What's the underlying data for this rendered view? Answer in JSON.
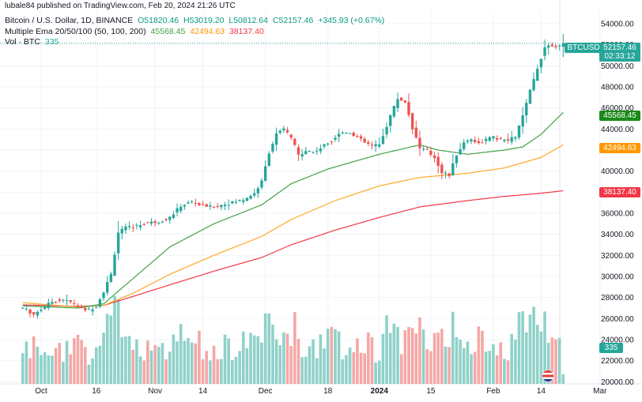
{
  "watermark": "lubale84 published on TradingView.com, Feb 20, 2024 21:26 UTC",
  "legend": {
    "symbol": "Bitcoin / U.S. Dollar, 1D, BINANCE",
    "open": "O51820.46",
    "high": "H53019.20",
    "low": "L50812.64",
    "close": "C52157.46",
    "change": "+345.93 (+0.67%)",
    "ema_title": "Multiple Ema 20/50/100 (50, 100, 200)",
    "ema1_value": "45568.45",
    "ema2_value": "42494.63",
    "ema3_value": "38137.40",
    "vol_title": "Vol · BTC",
    "vol_value": "335"
  },
  "price_labels": {
    "symbol": "BTCUSD",
    "price": "52157.46",
    "countdown": "02:33:12",
    "ema1": "45568.45",
    "ema2": "42494.63",
    "ema3": "38137.40",
    "volume": "335"
  },
  "colors": {
    "up": "#26a69a",
    "down": "#ef5350",
    "vol_up": "#8fd1c9",
    "vol_down": "#f4a8a6",
    "ema1": "#43a047",
    "ema2": "#ffa726",
    "ema3": "#f23645",
    "ema1_label": "#1b8a1b"
  },
  "chart_data": {
    "type": "candlestick",
    "ylim": [
      19800,
      55200
    ],
    "y_ticks": [
      "54000.00",
      "52000.00",
      "50000.00",
      "48000.00",
      "46000.00",
      "44000.00",
      "42000.00",
      "40000.00",
      "38000.00",
      "36000.00",
      "34000.00",
      "32000.00",
      "30000.00",
      "28000.00",
      "26000.00",
      "24000.00",
      "22000.00",
      "20000.00"
    ],
    "x_ticks": [
      {
        "label": "Oct",
        "day": 0
      },
      {
        "label": "16",
        "day": 15
      },
      {
        "label": "Nov",
        "day": 31
      },
      {
        "label": "14",
        "day": 44
      },
      {
        "label": "Dec",
        "day": 61
      },
      {
        "label": "18",
        "day": 78
      },
      {
        "label": "2024",
        "day": 92
      },
      {
        "label": "15",
        "day": 106
      },
      {
        "label": "Feb",
        "day": 123
      },
      {
        "label": "14",
        "day": 136
      },
      {
        "label": "Mar",
        "day": 152
      }
    ],
    "first_day": -5,
    "last_day": 142,
    "ema_keypoints": {
      "ema20": [
        [
          -5,
          27200
        ],
        [
          10,
          27000
        ],
        [
          17,
          27400
        ],
        [
          25,
          29800
        ],
        [
          35,
          32800
        ],
        [
          47,
          35000
        ],
        [
          60,
          36800
        ],
        [
          68,
          38800
        ],
        [
          78,
          40200
        ],
        [
          92,
          41600
        ],
        [
          103,
          42500
        ],
        [
          108,
          42000
        ],
        [
          116,
          41600
        ],
        [
          126,
          42000
        ],
        [
          131,
          42300
        ],
        [
          136,
          43500
        ],
        [
          142,
          45568.45
        ]
      ],
      "ema50": [
        [
          -5,
          27500
        ],
        [
          10,
          27100
        ],
        [
          17,
          27250
        ],
        [
          25,
          28400
        ],
        [
          35,
          30200
        ],
        [
          47,
          32000
        ],
        [
          60,
          33800
        ],
        [
          68,
          35400
        ],
        [
          80,
          37200
        ],
        [
          92,
          38600
        ],
        [
          103,
          39400
        ],
        [
          116,
          39800
        ],
        [
          126,
          40300
        ],
        [
          136,
          41300
        ],
        [
          142,
          42494.63
        ]
      ],
      "ema100": [
        [
          -5,
          27300
        ],
        [
          10,
          27150
        ],
        [
          17,
          27250
        ],
        [
          25,
          28100
        ],
        [
          35,
          29200
        ],
        [
          47,
          30500
        ],
        [
          60,
          31800
        ],
        [
          68,
          33000
        ],
        [
          80,
          34400
        ],
        [
          92,
          35600
        ],
        [
          103,
          36600
        ],
        [
          116,
          37200
        ],
        [
          126,
          37600
        ],
        [
          136,
          37900
        ],
        [
          142,
          38137.4
        ]
      ]
    },
    "price_keypoints": [
      [
        -5,
        27000
      ],
      [
        -2,
        26400
      ],
      [
        0,
        26900
      ],
      [
        3,
        27600
      ],
      [
        6,
        27800
      ],
      [
        9,
        27400
      ],
      [
        11,
        26900
      ],
      [
        13,
        26800
      ],
      [
        15,
        27200
      ],
      [
        17,
        28600
      ],
      [
        19,
        30200
      ],
      [
        21,
        34200
      ],
      [
        23,
        34600
      ],
      [
        26,
        34800
      ],
      [
        29,
        35100
      ],
      [
        32,
        35200
      ],
      [
        35,
        35600
      ],
      [
        38,
        36700
      ],
      [
        41,
        37100
      ],
      [
        43,
        36800
      ],
      [
        46,
        36600
      ],
      [
        49,
        36800
      ],
      [
        52,
        37000
      ],
      [
        55,
        37300
      ],
      [
        58,
        37900
      ],
      [
        60,
        39000
      ],
      [
        62,
        41800
      ],
      [
        64,
        43500
      ],
      [
        66,
        44000
      ],
      [
        68,
        43200
      ],
      [
        70,
        41500
      ],
      [
        72,
        42000
      ],
      [
        74,
        41800
      ],
      [
        76,
        42200
      ],
      [
        79,
        42900
      ],
      [
        81,
        43600
      ],
      [
        84,
        43700
      ],
      [
        86,
        43200
      ],
      [
        88,
        42700
      ],
      [
        90,
        42400
      ],
      [
        92,
        42500
      ],
      [
        94,
        44300
      ],
      [
        95,
        45300
      ],
      [
        97,
        46900
      ],
      [
        99,
        46600
      ],
      [
        101,
        44100
      ],
      [
        103,
        42200
      ],
      [
        105,
        41900
      ],
      [
        107,
        41300
      ],
      [
        109,
        39900
      ],
      [
        111,
        39600
      ],
      [
        113,
        41600
      ],
      [
        115,
        42700
      ],
      [
        117,
        43100
      ],
      [
        119,
        42600
      ],
      [
        121,
        43000
      ],
      [
        123,
        43200
      ],
      [
        125,
        43000
      ],
      [
        127,
        42900
      ],
      [
        129,
        43300
      ],
      [
        131,
        45200
      ],
      [
        133,
        47600
      ],
      [
        135,
        49800
      ],
      [
        137,
        51800
      ],
      [
        139,
        52000
      ],
      [
        141,
        51800
      ],
      [
        142,
        52157.46
      ]
    ],
    "volume_axis_max_btc": 3200,
    "ohlc_last": {
      "open": 51820.46,
      "high": 53019.2,
      "low": 50812.64,
      "close": 52157.46
    },
    "last_volume": 335,
    "series": [
      {
        "name": "BTCUSD",
        "type": "candlestick"
      },
      {
        "name": "EMA 50",
        "values_last": 45568.45
      },
      {
        "name": "EMA 100",
        "values_last": 42494.63
      },
      {
        "name": "EMA 200",
        "values_last": 38137.4
      },
      {
        "name": "Vol · BTC",
        "values_last": 335
      }
    ]
  }
}
